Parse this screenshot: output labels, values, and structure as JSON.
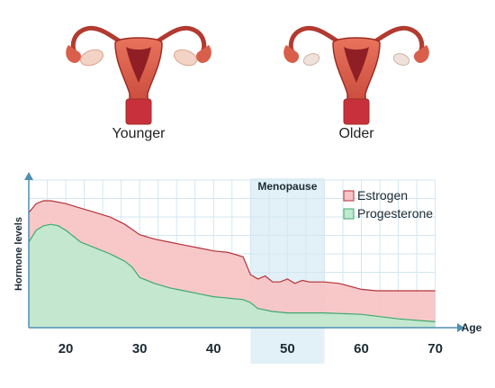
{
  "illustrations": {
    "younger_label": "Younger",
    "older_label": "Older"
  },
  "chart_data": {
    "type": "area",
    "ylabel": "Hormone levels",
    "xlabel": "Age",
    "xlim": [
      15,
      72
    ],
    "ylim": [
      0,
      1
    ],
    "x_ticks": [
      20,
      30,
      40,
      50,
      60,
      70
    ],
    "grid": true,
    "legend_position": "top-right",
    "annotation": {
      "text": "Menopause",
      "x_start": 45,
      "x_end": 55
    },
    "series": [
      {
        "name": "Estrogen",
        "color": "#f7c3c4",
        "stroke": "#b43238",
        "x": [
          15,
          16,
          17,
          18,
          20,
          22,
          24,
          26,
          28,
          30,
          32,
          34,
          36,
          38,
          40,
          42,
          44,
          45,
          46,
          47,
          48,
          49,
          50,
          51,
          52,
          53,
          55,
          57,
          60,
          62,
          65,
          68,
          70
        ],
        "values": [
          0.78,
          0.84,
          0.86,
          0.86,
          0.84,
          0.81,
          0.78,
          0.75,
          0.7,
          0.63,
          0.6,
          0.58,
          0.56,
          0.54,
          0.52,
          0.51,
          0.48,
          0.36,
          0.33,
          0.35,
          0.31,
          0.31,
          0.33,
          0.3,
          0.32,
          0.31,
          0.31,
          0.3,
          0.26,
          0.25,
          0.25,
          0.25,
          0.25
        ]
      },
      {
        "name": "Progesterone",
        "color": "#bfe9d0",
        "stroke": "#3daa6c",
        "x": [
          15,
          16,
          17,
          18,
          19,
          20,
          22,
          24,
          26,
          28,
          29,
          30,
          32,
          34,
          36,
          38,
          40,
          42,
          44,
          45,
          46,
          48,
          50,
          55,
          60,
          65,
          70
        ],
        "values": [
          0.58,
          0.66,
          0.69,
          0.7,
          0.69,
          0.66,
          0.58,
          0.54,
          0.5,
          0.45,
          0.41,
          0.34,
          0.3,
          0.27,
          0.25,
          0.23,
          0.21,
          0.2,
          0.19,
          0.17,
          0.13,
          0.11,
          0.1,
          0.1,
          0.09,
          0.06,
          0.04
        ]
      }
    ]
  }
}
